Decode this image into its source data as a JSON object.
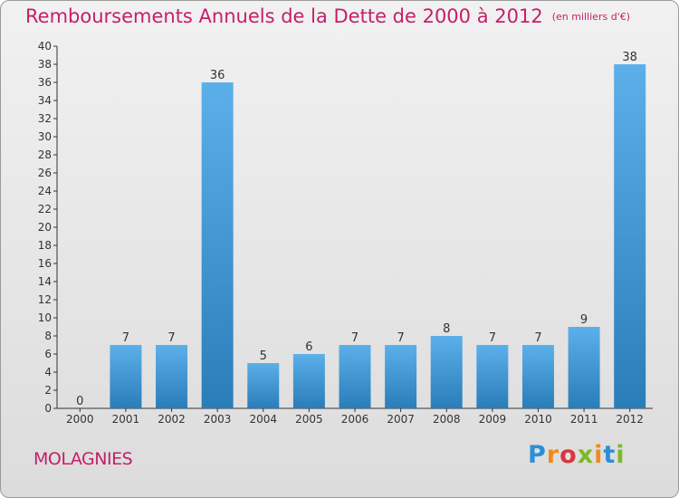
{
  "header": {
    "title": "Remboursements Annuels de la Dette de 2000 à 2012",
    "unit": "(en milliers d'€)"
  },
  "footer": {
    "commune": "MOLAGNIES",
    "brand": "Proxiti",
    "brand_colors": [
      "#2b8fd6",
      "#f18a1c",
      "#d9343f",
      "#7db928",
      "#f18a1c",
      "#2b8fd6",
      "#7db928"
    ]
  },
  "colors": {
    "title": "#c51f6a",
    "bar_top": "#5cb0ea",
    "bar_bottom": "#2a7db8",
    "axis": "#333333"
  },
  "chart_data": {
    "type": "bar",
    "title": "Remboursements Annuels de la Dette de 2000 à 2012",
    "subtitle": "(en milliers d'€)",
    "categories": [
      "2000",
      "2001",
      "2002",
      "2003",
      "2004",
      "2005",
      "2006",
      "2007",
      "2008",
      "2009",
      "2010",
      "2011",
      "2012"
    ],
    "values": [
      0,
      7,
      7,
      36,
      5,
      6,
      7,
      7,
      8,
      7,
      7,
      9,
      38
    ],
    "ylim": [
      0,
      40
    ],
    "yticks": [
      0,
      2,
      4,
      6,
      8,
      10,
      12,
      14,
      16,
      18,
      20,
      22,
      24,
      26,
      28,
      30,
      32,
      34,
      36,
      38,
      40
    ],
    "grid": false,
    "data_labels": true,
    "xlabel": "",
    "ylabel": ""
  }
}
